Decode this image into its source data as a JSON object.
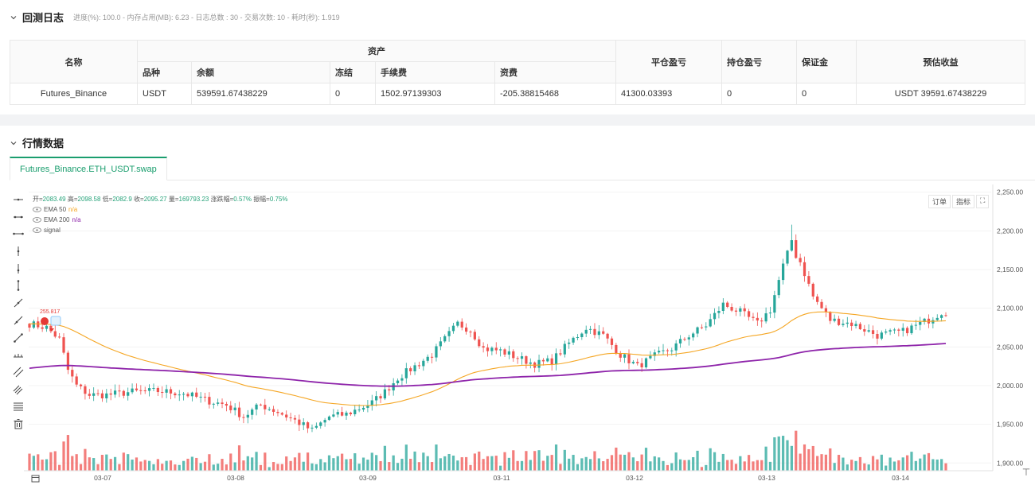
{
  "backtest_log": {
    "title": "回测日志",
    "meta": "进度(%): 100.0 - 内存占用(MB): 6.23 - 日志总数 : 30 - 交易次数: 10 - 耗时(秒): 1.919"
  },
  "table": {
    "col_name": "名称",
    "group_assets": "资产",
    "col_variety": "品种",
    "col_balance": "余额",
    "col_frozen": "冻结",
    "col_fee": "手续费",
    "col_funding": "资费",
    "col_closed_pnl": "平仓盈亏",
    "col_position_pnl": "持仓盈亏",
    "col_margin": "保证金",
    "col_est_profit": "预估收益",
    "rows": [
      {
        "name": "Futures_Binance",
        "variety": "USDT",
        "balance": "539591.67438229",
        "frozen": "0",
        "fee": "1502.97139303",
        "funding": "-205.38815468",
        "closed_pnl": "41300.03393",
        "position_pnl": "0",
        "margin": "0",
        "est_profit": "USDT 39591.67438229"
      }
    ]
  },
  "market": {
    "title": "行情数据",
    "tab": "Futures_Binance.ETH_USDT.swap",
    "legend": {
      "open_label": "开=",
      "open": "2083.49",
      "high_label": "高=",
      "high": "2098.58",
      "low_label": "低=",
      "low": "2082.9",
      "close_label": "收=",
      "close": "2095.27",
      "vol_label": "量=",
      "vol": "169793.23",
      "chg_label": "涨跌幅=",
      "chg": "0.57%",
      "amp_label": "振幅=",
      "amp": "0.75%",
      "ema50_name": "EMA 50",
      "ema50_val": "n/a",
      "ema200_name": "EMA 200",
      "ema200_val": "n/a",
      "signal_name": "signal"
    },
    "buttons": {
      "order": "订单",
      "indicator": "指标",
      "fullscreen_icon": "expand-icon"
    },
    "annotation_label": "255.817"
  },
  "chart_data": {
    "type": "candlestick",
    "x_ticks": [
      "03-07",
      "03-08",
      "03-09",
      "03-11",
      "03-12",
      "03-13",
      "03-14"
    ],
    "y_ticks": [
      1900,
      1950,
      2000,
      2050,
      2100,
      2150,
      2200,
      2250
    ],
    "ylim": [
      1890,
      2260
    ],
    "y_tick_labels": [
      "1,900.00",
      "1,950.00",
      "2,000.00",
      "2,050.00",
      "2,100.00",
      "2,150.00",
      "2,200.00",
      "2,250.00"
    ],
    "colors": {
      "up": "#26a69a",
      "down": "#ef5350",
      "ema50": "#f5a623",
      "ema200": "#8e24aa"
    },
    "anchors_close": [
      [
        0,
        2080
      ],
      [
        4,
        2075
      ],
      [
        7,
        2060
      ],
      [
        9,
        2020
      ],
      [
        11,
        2000
      ],
      [
        14,
        1988
      ],
      [
        18,
        1988
      ],
      [
        24,
        1992
      ],
      [
        30,
        1993
      ],
      [
        36,
        1990
      ],
      [
        42,
        1980
      ],
      [
        46,
        1975
      ],
      [
        50,
        1960
      ],
      [
        54,
        1975
      ],
      [
        58,
        1966
      ],
      [
        62,
        1955
      ],
      [
        66,
        1942
      ],
      [
        70,
        1960
      ],
      [
        74,
        1963
      ],
      [
        80,
        1978
      ],
      [
        83,
        1992
      ],
      [
        86,
        2010
      ],
      [
        90,
        2025
      ],
      [
        94,
        2040
      ],
      [
        97,
        2060
      ],
      [
        100,
        2080
      ],
      [
        103,
        2072
      ],
      [
        106,
        2048
      ],
      [
        110,
        2045
      ],
      [
        114,
        2036
      ],
      [
        118,
        2028
      ],
      [
        122,
        2032
      ],
      [
        126,
        2055
      ],
      [
        130,
        2075
      ],
      [
        134,
        2065
      ],
      [
        138,
        2040
      ],
      [
        142,
        2025
      ],
      [
        146,
        2038
      ],
      [
        150,
        2048
      ],
      [
        154,
        2065
      ],
      [
        158,
        2078
      ],
      [
        162,
        2105
      ],
      [
        166,
        2095
      ],
      [
        170,
        2080
      ],
      [
        173,
        2098
      ],
      [
        176,
        2155
      ],
      [
        178,
        2185
      ],
      [
        180,
        2160
      ],
      [
        183,
        2115
      ],
      [
        187,
        2085
      ],
      [
        192,
        2080
      ],
      [
        198,
        2065
      ],
      [
        204,
        2070
      ],
      [
        210,
        2085
      ],
      [
        213,
        2095
      ]
    ],
    "volume_range": [
      0,
      1
    ]
  }
}
